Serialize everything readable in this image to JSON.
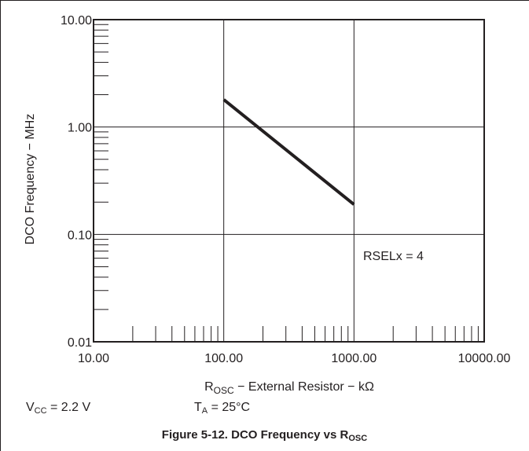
{
  "chart_data": {
    "type": "line",
    "x_scale": "log",
    "y_scale": "log",
    "xlim": [
      10,
      10000
    ],
    "ylim": [
      0.01,
      10
    ],
    "x_ticks": [
      "10.00",
      "100.00",
      "1000.00",
      "10000.00"
    ],
    "y_ticks": [
      "0.01",
      "0.10",
      "1.00",
      "10.00"
    ],
    "xlabel": {
      "prefix": "R",
      "sub": "OSC",
      "suffix": " − External Resistor − kΩ"
    },
    "ylabel": "DCO Frequency − MHz",
    "grid": true,
    "series": [
      {
        "x": [
          100,
          1000
        ],
        "y": [
          1.8,
          0.19
        ]
      }
    ],
    "annotation": "RSELx = 4",
    "colors": {
      "line": "#231f20",
      "grid": "#231f20"
    }
  },
  "conditions": {
    "vcc": {
      "prefix": "V",
      "sub": "CC",
      "suffix": " = 2.2 V"
    },
    "ta": {
      "prefix": "T",
      "sub": "A",
      "suffix": " = 25°C"
    }
  },
  "caption": {
    "prefix": "Figure 5-12.  DCO Frequency vs R",
    "sub": "OSC"
  }
}
